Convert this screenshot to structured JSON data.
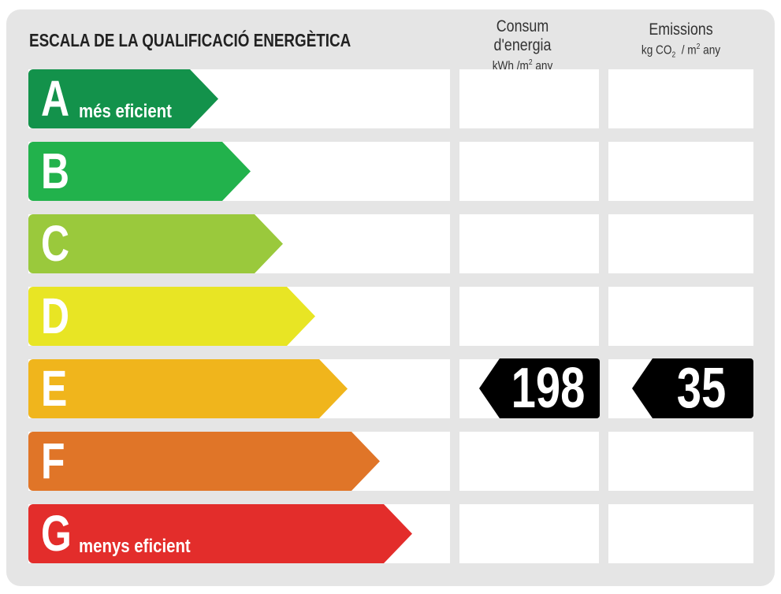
{
  "title": "ESCALA DE LA QUALIFICACIÓ ENERGÈTICA",
  "columns": {
    "consumption": {
      "label": "Consum d'energia",
      "unit_prefix": "kWh /m",
      "unit_sup": "2",
      "unit_suffix": " any"
    },
    "emissions": {
      "label": "Emissions",
      "unit_prefix": "kg CO",
      "unit_sub": "2",
      "unit_mid": "  / m",
      "unit_sup": "2",
      "unit_suffix": " any"
    }
  },
  "classes": [
    {
      "letter": "A",
      "caption": "més eficient",
      "color": "#13924b"
    },
    {
      "letter": "B",
      "caption": "",
      "color": "#22b24c"
    },
    {
      "letter": "C",
      "caption": "",
      "color": "#9ac93c"
    },
    {
      "letter": "D",
      "caption": "",
      "color": "#e8e524"
    },
    {
      "letter": "E",
      "caption": "",
      "color": "#f0b51c"
    },
    {
      "letter": "F",
      "caption": "",
      "color": "#e07528"
    },
    {
      "letter": "G",
      "caption": "menys eficient",
      "color": "#e32d2b"
    }
  ],
  "rating": {
    "class": "E",
    "consumption_value": "198",
    "emissions_value": "35"
  }
}
